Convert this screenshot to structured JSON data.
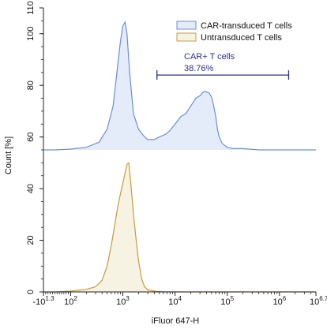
{
  "chart_data": {
    "type": "histogram-overlay",
    "title": "",
    "xlabel": "iFluor 647-H",
    "ylabel": "Count [%]",
    "x_scale": "biexponential",
    "x_ticks": [
      {
        "base": "-10",
        "exp": "1.3",
        "value": -20
      },
      {
        "base": "10",
        "exp": "2",
        "value": 100
      },
      {
        "base": "10",
        "exp": "3",
        "value": 1000
      },
      {
        "base": "10",
        "exp": "4",
        "value": 10000
      },
      {
        "base": "10",
        "exp": "5",
        "value": 100000
      },
      {
        "base": "10",
        "exp": "6",
        "value": 1000000
      },
      {
        "base": "10",
        "exp": "6.7",
        "value": 5000000
      }
    ],
    "y_ticks": [
      {
        "label": "0",
        "value": 0
      },
      {
        "label": "20",
        "value": 20
      },
      {
        "label": "40",
        "value": 40
      },
      {
        "label": "60",
        "value": 60
      },
      {
        "label": "80",
        "value": 80
      },
      {
        "label": "100",
        "value": 100
      },
      {
        "label": "110",
        "value": 110
      }
    ],
    "y_range": [
      0,
      110
    ],
    "legend_position": "top-right",
    "series": [
      {
        "name": "CAR-transduced T cells",
        "color": "#6b8fd6",
        "fill": "#e4ecfa",
        "offset": 55,
        "x": [
          -20,
          30,
          100,
          200,
          350,
          500,
          650,
          800,
          900,
          1000,
          1100,
          1200,
          1350,
          1600,
          2000,
          2500,
          3000,
          3500,
          4000,
          5000,
          6500,
          8000,
          10000,
          13000,
          16000,
          20000,
          25000,
          30000,
          35000,
          40000,
          45000,
          50000,
          55000,
          60000,
          65000,
          70000,
          80000,
          100000,
          130000,
          200000,
          400000,
          1000000,
          2000000,
          5000000
        ],
        "y": [
          55,
          55,
          55.3,
          56,
          58,
          63,
          72,
          88,
          97,
          103,
          104.5,
          100,
          85,
          69,
          63,
          60.5,
          59,
          59,
          59,
          60,
          61,
          62.5,
          65,
          68,
          69,
          72,
          75,
          76,
          77.5,
          77.5,
          77,
          75.5,
          72,
          68,
          63,
          60,
          57.5,
          56,
          55.5,
          55.5,
          55,
          55,
          55,
          55
        ]
      },
      {
        "name": "Untransduced T cells",
        "color": "#c89b3c",
        "fill": "#f7f3e3",
        "offset": 0,
        "x": [
          -20,
          30,
          100,
          200,
          300,
          400,
          500,
          600,
          700,
          800,
          900,
          1000,
          1100,
          1200,
          1300,
          1450,
          1600,
          1800,
          2000,
          2300,
          2600,
          3000,
          4000,
          6000,
          10000,
          30000,
          100000,
          1000000,
          5000000
        ],
        "y": [
          0,
          0,
          0.3,
          1,
          2,
          4.5,
          10,
          18,
          26,
          33,
          38,
          42,
          46,
          49.5,
          50,
          40,
          30,
          20,
          12,
          5,
          2,
          0.8,
          0.3,
          0.1,
          0,
          0,
          0,
          0,
          0
        ]
      }
    ],
    "gate": {
      "label": "CAR+ T cells",
      "percent": "38.76%",
      "x_start": 4500,
      "x_end": 1500000,
      "y": 84,
      "color": "#2a2f8f"
    }
  }
}
